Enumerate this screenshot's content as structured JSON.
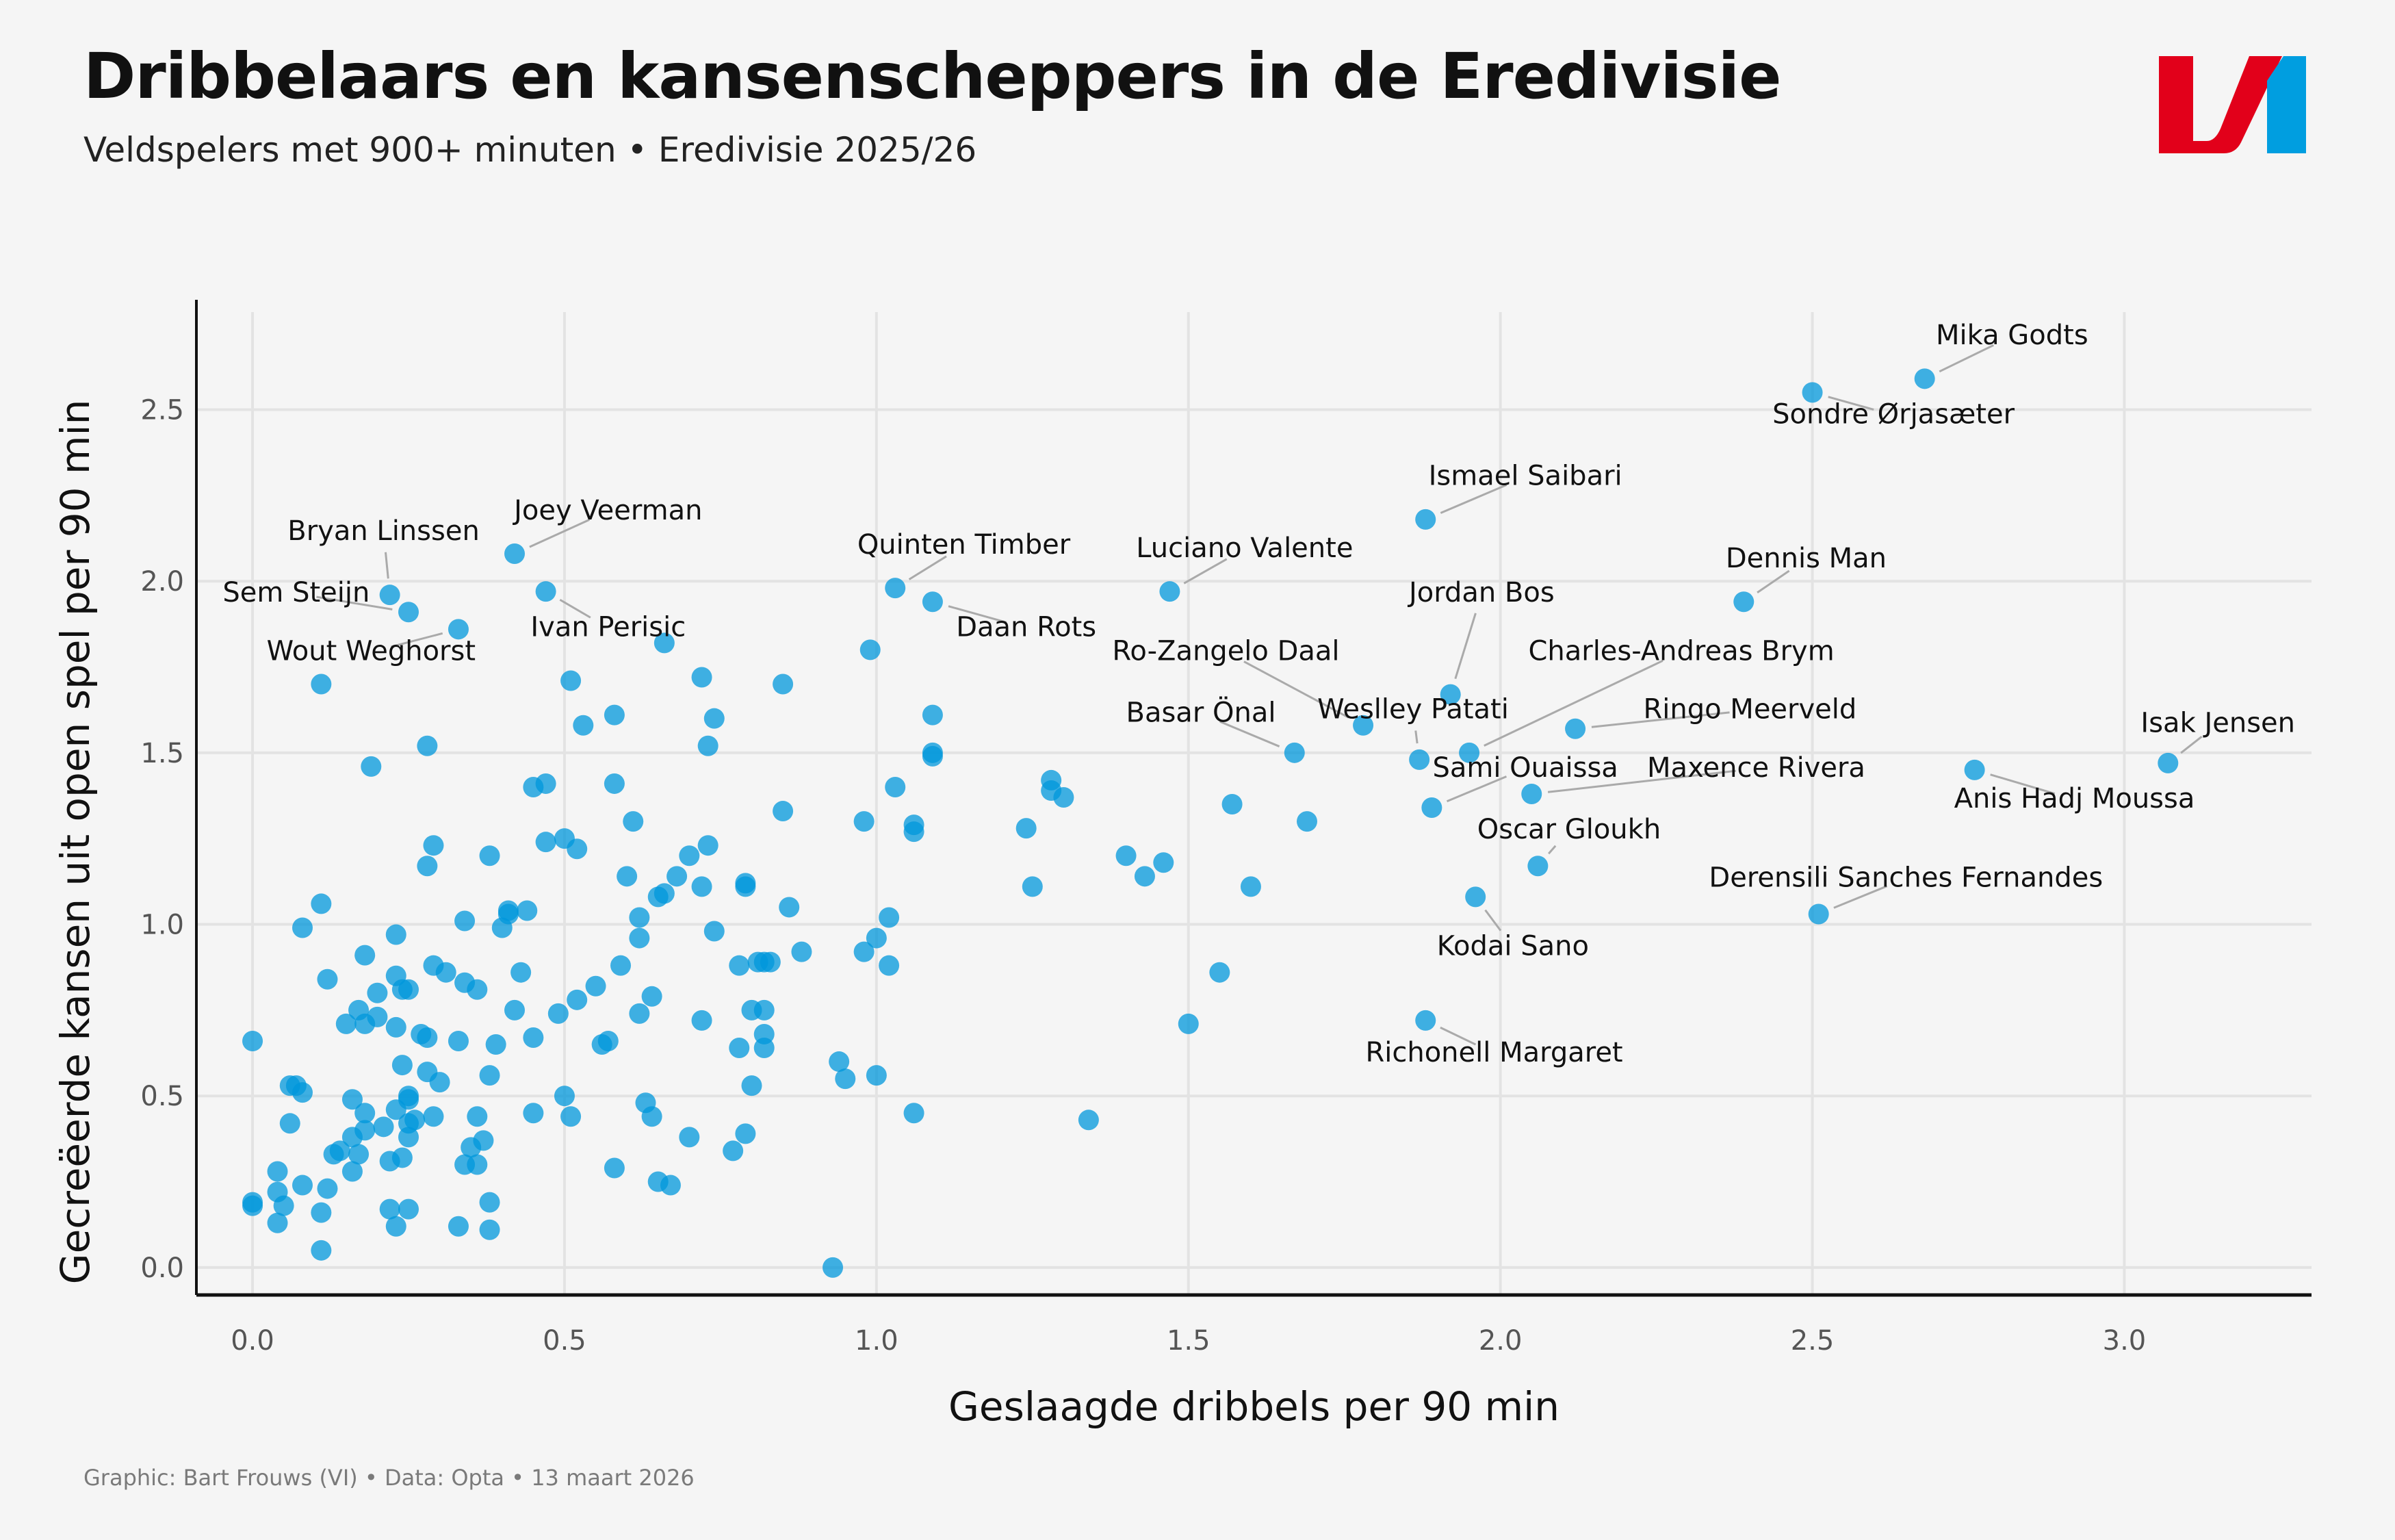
{
  "header": {
    "title": "Dribbelaars en kansenscheppers in de Eredivisie",
    "subtitle": "Veldspelers met 900+ minuten • Eredivisie 2025/26",
    "logo": "VI-logo"
  },
  "footer": {
    "credit": "Graphic: Bart Frouws (VI) • Data: Opta • 13 maart 2026"
  },
  "colors": {
    "point": "#0097db",
    "logo_red": "#e2001a",
    "logo_blue": "#009ee0",
    "background": "#f5f5f5"
  },
  "chart_data": {
    "type": "scatter",
    "title": "Dribbelaars en kansenscheppers in de Eredivisie",
    "subtitle": "Veldspelers met 900+ minuten • Eredivisie 2025/26",
    "xlabel": "Geslaagde dribbels per 90 min",
    "ylabel": "Gecreëerde kansen uit open spel per 90 min",
    "xlim": [
      -0.09,
      3.3
    ],
    "ylim": [
      -0.08,
      2.82
    ],
    "xticks": [
      "0.0",
      "0.5",
      "1.0",
      "1.5",
      "2.0",
      "2.5",
      "3.0"
    ],
    "xtick_values": [
      0,
      0.5,
      1.0,
      1.5,
      2.0,
      2.5,
      3.0
    ],
    "yticks": [
      "0.0",
      "0.5",
      "1.0",
      "1.5",
      "2.0",
      "2.5"
    ],
    "ytick_values": [
      0,
      0.5,
      1.0,
      1.5,
      2.0,
      2.5
    ],
    "grid": true,
    "labeled_points": [
      {
        "name": "Mika Godts",
        "x": 2.68,
        "y": 2.59,
        "lx": 2.82,
        "ly": 2.69,
        "anchor": "middle"
      },
      {
        "name": "Sondre Ørjasæter",
        "x": 2.5,
        "y": 2.55,
        "lx": 2.63,
        "ly": 2.46,
        "anchor": "middle"
      },
      {
        "name": "Ismael Saibari",
        "x": 1.88,
        "y": 2.18,
        "lx": 2.04,
        "ly": 2.28,
        "anchor": "middle"
      },
      {
        "name": "Dennis Man",
        "x": 2.39,
        "y": 1.94,
        "lx": 2.49,
        "ly": 2.04,
        "anchor": "middle"
      },
      {
        "name": "Joey Veerman",
        "x": 0.42,
        "y": 2.08,
        "lx": 0.57,
        "ly": 2.18,
        "anchor": "middle"
      },
      {
        "name": "Bryan Linssen",
        "x": 0.22,
        "y": 1.96,
        "lx": 0.21,
        "ly": 2.12,
        "anchor": "middle"
      },
      {
        "name": "Sem Steijn",
        "x": 0.25,
        "y": 1.91,
        "lx": 0.07,
        "ly": 1.94,
        "anchor": "middle"
      },
      {
        "name": "Ivan Perisic",
        "x": 0.47,
        "y": 1.97,
        "lx": 0.57,
        "ly": 1.84,
        "anchor": "middle"
      },
      {
        "name": "Wout Weghorst",
        "x": 0.33,
        "y": 1.86,
        "lx": 0.19,
        "ly": 1.77,
        "anchor": "middle"
      },
      {
        "name": "Quinten Timber",
        "x": 1.03,
        "y": 1.98,
        "lx": 1.14,
        "ly": 2.08,
        "anchor": "middle"
      },
      {
        "name": "Daan Rots",
        "x": 1.09,
        "y": 1.94,
        "lx": 1.24,
        "ly": 1.84,
        "anchor": "middle"
      },
      {
        "name": "Luciano Valente",
        "x": 1.47,
        "y": 1.97,
        "lx": 1.59,
        "ly": 2.07,
        "anchor": "middle"
      },
      {
        "name": "Jordan Bos",
        "x": 1.92,
        "y": 1.67,
        "lx": 1.97,
        "ly": 1.94,
        "anchor": "middle"
      },
      {
        "name": "Ro-Zangelo Daal",
        "x": 1.78,
        "y": 1.58,
        "lx": 1.56,
        "ly": 1.77,
        "anchor": "middle"
      },
      {
        "name": "Charles-Andreas Brym",
        "x": 1.95,
        "y": 1.5,
        "lx": 2.29,
        "ly": 1.77,
        "anchor": "middle"
      },
      {
        "name": "Weslley Patati",
        "x": 1.87,
        "y": 1.48,
        "lx": 1.86,
        "ly": 1.6,
        "anchor": "middle"
      },
      {
        "name": "Basar Önal",
        "x": 1.67,
        "y": 1.5,
        "lx": 1.52,
        "ly": 1.59,
        "anchor": "middle"
      },
      {
        "name": "Ringo Meerveld",
        "x": 2.12,
        "y": 1.57,
        "lx": 2.4,
        "ly": 1.6,
        "anchor": "middle"
      },
      {
        "name": "Sami Ouaissa",
        "x": 1.89,
        "y": 1.34,
        "lx": 2.04,
        "ly": 1.43,
        "anchor": "middle"
      },
      {
        "name": "Maxence Rivera",
        "x": 2.05,
        "y": 1.38,
        "lx": 2.41,
        "ly": 1.43,
        "anchor": "middle"
      },
      {
        "name": "Oscar Gloukh",
        "x": 2.06,
        "y": 1.17,
        "lx": 2.11,
        "ly": 1.25,
        "anchor": "middle"
      },
      {
        "name": "Kodai Sano",
        "x": 1.96,
        "y": 1.08,
        "lx": 2.02,
        "ly": 0.91,
        "anchor": "middle"
      },
      {
        "name": "Derensili Sanches Fernandes",
        "x": 2.51,
        "y": 1.03,
        "lx": 2.65,
        "ly": 1.11,
        "anchor": "middle"
      },
      {
        "name": "Richonell Margaret",
        "x": 1.88,
        "y": 0.72,
        "lx": 1.99,
        "ly": 0.6,
        "anchor": "middle"
      },
      {
        "name": "Anis Hadj Moussa",
        "x": 2.76,
        "y": 1.45,
        "lx": 2.92,
        "ly": 1.34,
        "anchor": "middle"
      },
      {
        "name": "Isak Jensen",
        "x": 3.07,
        "y": 1.47,
        "lx": 3.15,
        "ly": 1.56,
        "anchor": "middle"
      }
    ],
    "points": [
      [
        0.0,
        0.66
      ],
      [
        0.0,
        0.19
      ],
      [
        0.0,
        0.18
      ],
      [
        0.04,
        0.28
      ],
      [
        0.04,
        0.22
      ],
      [
        0.04,
        0.13
      ],
      [
        0.05,
        0.18
      ],
      [
        0.06,
        0.53
      ],
      [
        0.06,
        0.42
      ],
      [
        0.07,
        0.53
      ],
      [
        0.08,
        0.51
      ],
      [
        0.08,
        0.24
      ],
      [
        0.08,
        0.99
      ],
      [
        0.11,
        1.7
      ],
      [
        0.11,
        1.06
      ],
      [
        0.11,
        0.16
      ],
      [
        0.11,
        0.05
      ],
      [
        0.12,
        0.84
      ],
      [
        0.12,
        0.23
      ],
      [
        0.13,
        0.33
      ],
      [
        0.14,
        0.34
      ],
      [
        0.15,
        0.71
      ],
      [
        0.16,
        0.49
      ],
      [
        0.16,
        0.38
      ],
      [
        0.16,
        0.28
      ],
      [
        0.17,
        0.75
      ],
      [
        0.17,
        0.33
      ],
      [
        0.18,
        0.91
      ],
      [
        0.18,
        0.71
      ],
      [
        0.18,
        0.45
      ],
      [
        0.18,
        0.4
      ],
      [
        0.19,
        1.46
      ],
      [
        0.2,
        0.8
      ],
      [
        0.2,
        0.73
      ],
      [
        0.21,
        0.41
      ],
      [
        0.22,
        0.31
      ],
      [
        0.22,
        0.17
      ],
      [
        0.23,
        0.97
      ],
      [
        0.23,
        0.85
      ],
      [
        0.23,
        0.7
      ],
      [
        0.23,
        0.46
      ],
      [
        0.23,
        0.12
      ],
      [
        0.24,
        0.81
      ],
      [
        0.24,
        0.59
      ],
      [
        0.24,
        0.32
      ],
      [
        0.25,
        0.81
      ],
      [
        0.25,
        0.5
      ],
      [
        0.25,
        0.49
      ],
      [
        0.25,
        0.42
      ],
      [
        0.25,
        0.38
      ],
      [
        0.25,
        0.17
      ],
      [
        0.26,
        0.43
      ],
      [
        0.27,
        0.68
      ],
      [
        0.28,
        1.52
      ],
      [
        0.28,
        1.17
      ],
      [
        0.28,
        0.67
      ],
      [
        0.28,
        0.57
      ],
      [
        0.29,
        1.23
      ],
      [
        0.29,
        0.88
      ],
      [
        0.29,
        0.44
      ],
      [
        0.3,
        0.54
      ],
      [
        0.31,
        0.86
      ],
      [
        0.33,
        0.66
      ],
      [
        0.33,
        0.12
      ],
      [
        0.34,
        1.01
      ],
      [
        0.34,
        0.83
      ],
      [
        0.34,
        0.3
      ],
      [
        0.35,
        0.35
      ],
      [
        0.36,
        0.81
      ],
      [
        0.36,
        0.44
      ],
      [
        0.36,
        0.3
      ],
      [
        0.37,
        0.37
      ],
      [
        0.38,
        1.2
      ],
      [
        0.38,
        0.56
      ],
      [
        0.38,
        0.19
      ],
      [
        0.38,
        0.11
      ],
      [
        0.39,
        0.65
      ],
      [
        0.4,
        0.99
      ],
      [
        0.41,
        1.04
      ],
      [
        0.41,
        1.03
      ],
      [
        0.42,
        0.75
      ],
      [
        0.43,
        0.86
      ],
      [
        0.44,
        1.04
      ],
      [
        0.45,
        1.4
      ],
      [
        0.45,
        0.67
      ],
      [
        0.45,
        0.45
      ],
      [
        0.47,
        1.41
      ],
      [
        0.47,
        1.24
      ],
      [
        0.49,
        0.74
      ],
      [
        0.5,
        1.25
      ],
      [
        0.5,
        0.5
      ],
      [
        0.51,
        1.71
      ],
      [
        0.51,
        0.44
      ],
      [
        0.52,
        1.22
      ],
      [
        0.52,
        0.78
      ],
      [
        0.53,
        1.58
      ],
      [
        0.55,
        0.82
      ],
      [
        0.56,
        0.65
      ],
      [
        0.57,
        0.66
      ],
      [
        0.58,
        1.61
      ],
      [
        0.58,
        1.41
      ],
      [
        0.58,
        0.29
      ],
      [
        0.59,
        0.88
      ],
      [
        0.6,
        1.14
      ],
      [
        0.61,
        1.3
      ],
      [
        0.62,
        1.02
      ],
      [
        0.62,
        0.96
      ],
      [
        0.62,
        0.74
      ],
      [
        0.63,
        0.48
      ],
      [
        0.64,
        0.79
      ],
      [
        0.64,
        0.44
      ],
      [
        0.65,
        1.08
      ],
      [
        0.65,
        0.25
      ],
      [
        0.66,
        1.82
      ],
      [
        0.66,
        1.09
      ],
      [
        0.67,
        0.24
      ],
      [
        0.68,
        1.14
      ],
      [
        0.7,
        1.2
      ],
      [
        0.7,
        0.38
      ],
      [
        0.72,
        1.72
      ],
      [
        0.72,
        1.11
      ],
      [
        0.72,
        0.72
      ],
      [
        0.73,
        1.52
      ],
      [
        0.73,
        1.23
      ],
      [
        0.74,
        1.6
      ],
      [
        0.74,
        0.98
      ],
      [
        0.77,
        0.34
      ],
      [
        0.78,
        0.88
      ],
      [
        0.78,
        0.64
      ],
      [
        0.79,
        1.12
      ],
      [
        0.79,
        1.11
      ],
      [
        0.79,
        0.39
      ],
      [
        0.8,
        0.75
      ],
      [
        0.8,
        0.53
      ],
      [
        0.81,
        0.89
      ],
      [
        0.82,
        0.89
      ],
      [
        0.82,
        0.75
      ],
      [
        0.82,
        0.68
      ],
      [
        0.82,
        0.64
      ],
      [
        0.83,
        0.89
      ],
      [
        0.85,
        1.7
      ],
      [
        0.85,
        1.33
      ],
      [
        0.86,
        1.05
      ],
      [
        0.88,
        0.92
      ],
      [
        0.93,
        0.0
      ],
      [
        0.94,
        0.6
      ],
      [
        0.95,
        0.55
      ],
      [
        0.98,
        1.3
      ],
      [
        0.98,
        0.92
      ],
      [
        0.99,
        1.8
      ],
      [
        1.0,
        0.96
      ],
      [
        1.0,
        0.56
      ],
      [
        1.02,
        1.02
      ],
      [
        1.02,
        0.88
      ],
      [
        1.03,
        1.4
      ],
      [
        1.06,
        1.29
      ],
      [
        1.06,
        1.27
      ],
      [
        1.06,
        0.45
      ],
      [
        1.09,
        1.61
      ],
      [
        1.09,
        1.5
      ],
      [
        1.09,
        1.49
      ],
      [
        1.24,
        1.28
      ],
      [
        1.25,
        1.11
      ],
      [
        1.28,
        1.42
      ],
      [
        1.28,
        1.39
      ],
      [
        1.3,
        1.37
      ],
      [
        1.34,
        0.43
      ],
      [
        1.4,
        1.2
      ],
      [
        1.43,
        1.14
      ],
      [
        1.46,
        1.18
      ],
      [
        1.5,
        0.71
      ],
      [
        1.55,
        0.86
      ],
      [
        1.57,
        1.35
      ],
      [
        1.6,
        1.11
      ],
      [
        1.69,
        1.3
      ]
    ]
  }
}
